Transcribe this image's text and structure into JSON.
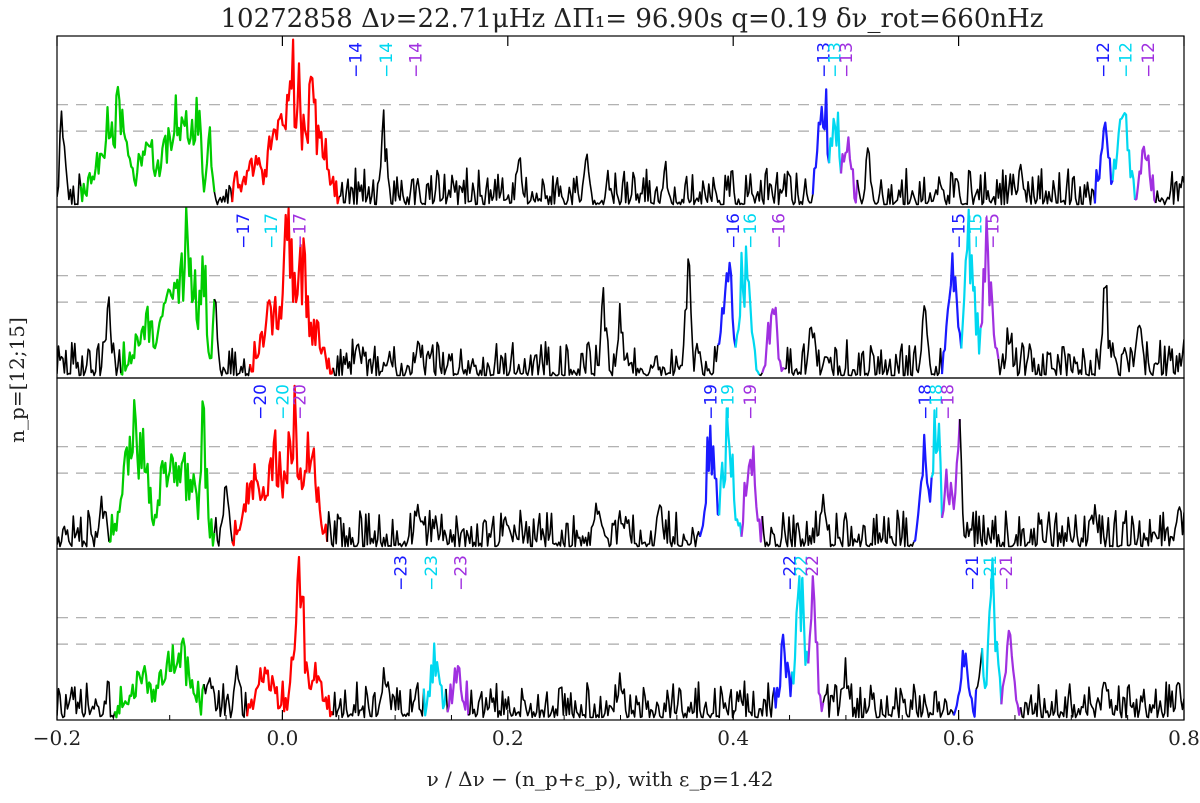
{
  "chart_data": {
    "type": "line",
    "title": "10272858 Δν=22.71μHz ΔΠ₁= 96.90s q=0.19 δν_rot=660nHz",
    "xlabel": "ν / Δν − (n_p+ε_p),  with ε_p=1.42",
    "ylabel": "n_p=[12;15]",
    "xlim": [
      -0.2,
      0.8
    ],
    "x_ticks": [
      "−0.2",
      "0.0",
      "0.2",
      "0.4",
      "0.6",
      "0.8"
    ],
    "x_tick_values": [
      -0.2,
      0.0,
      0.2,
      0.4,
      0.6,
      0.8
    ],
    "grid": false,
    "dashed_levels": [
      0.62,
      0.46
    ],
    "colors": {
      "spectrum": "#000000",
      "l0": "#ff0000",
      "l2": "#00cc00",
      "m_minus": "#1a1aff",
      "m_zero": "#00d8f0",
      "m_plus": "#a030e0"
    },
    "panels": [
      {
        "name": "panel-1",
        "noise_seed": 11,
        "peaks": [
          {
            "x": -0.195,
            "h": 0.75,
            "c": "black"
          },
          {
            "x": -0.15,
            "h": 0.78,
            "c": "l2",
            "w": 0.012
          },
          {
            "x": -0.12,
            "h": 0.45,
            "c": "l2",
            "w": 0.01
          },
          {
            "x": -0.095,
            "h": 0.7,
            "c": "l2",
            "w": 0.012
          },
          {
            "x": -0.085,
            "h": 0.6,
            "c": "l2",
            "w": 0.01
          },
          {
            "x": -0.075,
            "h": 0.85,
            "c": "black"
          },
          {
            "x": -0.065,
            "h": 0.62,
            "c": "black"
          },
          {
            "x": -0.025,
            "h": 0.35,
            "c": "l0",
            "w": 0.008
          },
          {
            "x": -0.005,
            "h": 0.65,
            "c": "l0",
            "w": 0.008
          },
          {
            "x": 0.01,
            "h": 1.05,
            "c": "l0",
            "w": 0.008
          },
          {
            "x": 0.025,
            "h": 0.8,
            "c": "l0",
            "w": 0.008
          },
          {
            "x": 0.035,
            "h": 0.5,
            "c": "l0",
            "w": 0.006
          },
          {
            "x": 0.09,
            "h": 0.6,
            "c": "black"
          },
          {
            "x": 0.21,
            "h": 0.35,
            "c": "black"
          },
          {
            "x": 0.27,
            "h": 0.4,
            "c": "black"
          },
          {
            "x": 0.34,
            "h": 0.3,
            "c": "black"
          },
          {
            "x": 0.475,
            "h": 0.55,
            "c": "black"
          },
          {
            "x": 0.48,
            "h": 1.0,
            "c": "m_minus",
            "w": 0.004
          },
          {
            "x": 0.49,
            "h": 0.9,
            "c": "m_zero",
            "w": 0.004
          },
          {
            "x": 0.5,
            "h": 0.5,
            "c": "m_plus",
            "w": 0.004
          },
          {
            "x": 0.52,
            "h": 0.4,
            "c": "black"
          },
          {
            "x": 0.655,
            "h": 0.3,
            "c": "black"
          },
          {
            "x": 0.73,
            "h": 0.6,
            "c": "m_minus",
            "w": 0.004
          },
          {
            "x": 0.745,
            "h": 0.75,
            "c": "m_zero",
            "w": 0.005
          },
          {
            "x": 0.765,
            "h": 0.45,
            "c": "m_plus",
            "w": 0.004
          }
        ],
        "labels": [
          {
            "x": 0.065,
            "text": "−14",
            "c": "m_minus"
          },
          {
            "x": 0.092,
            "text": "−14",
            "c": "m_zero"
          },
          {
            "x": 0.118,
            "text": "−14",
            "c": "m_plus"
          },
          {
            "x": 0.48,
            "text": "−13",
            "c": "m_minus"
          },
          {
            "x": 0.49,
            "text": "−13",
            "c": "m_zero"
          },
          {
            "x": 0.5,
            "text": "−13",
            "c": "m_plus"
          },
          {
            "x": 0.728,
            "text": "−12",
            "c": "m_minus"
          },
          {
            "x": 0.748,
            "text": "−12",
            "c": "m_zero"
          },
          {
            "x": 0.768,
            "text": "−12",
            "c": "m_plus"
          }
        ]
      },
      {
        "name": "panel-2",
        "noise_seed": 29,
        "peaks": [
          {
            "x": -0.155,
            "h": 0.6,
            "c": "black"
          },
          {
            "x": -0.12,
            "h": 0.45,
            "c": "l2",
            "w": 0.01
          },
          {
            "x": -0.095,
            "h": 0.75,
            "c": "l2",
            "w": 0.012
          },
          {
            "x": -0.085,
            "h": 1.05,
            "c": "l2",
            "w": 0.01
          },
          {
            "x": -0.07,
            "h": 1.0,
            "c": "black"
          },
          {
            "x": -0.06,
            "h": 0.55,
            "c": "black"
          },
          {
            "x": -0.01,
            "h": 0.55,
            "c": "l0",
            "w": 0.008
          },
          {
            "x": 0.005,
            "h": 1.05,
            "c": "l0",
            "w": 0.007
          },
          {
            "x": 0.015,
            "h": 1.0,
            "c": "l0",
            "w": 0.007
          },
          {
            "x": 0.03,
            "h": 0.4,
            "c": "l0",
            "w": 0.006
          },
          {
            "x": 0.12,
            "h": 0.3,
            "c": "black"
          },
          {
            "x": 0.285,
            "h": 0.55,
            "c": "black"
          },
          {
            "x": 0.3,
            "h": 0.5,
            "c": "black"
          },
          {
            "x": 0.36,
            "h": 0.8,
            "c": "black"
          },
          {
            "x": 0.395,
            "h": 1.0,
            "c": "m_minus",
            "w": 0.004
          },
          {
            "x": 0.41,
            "h": 0.95,
            "c": "m_zero",
            "w": 0.005
          },
          {
            "x": 0.435,
            "h": 0.55,
            "c": "m_plus",
            "w": 0.004
          },
          {
            "x": 0.47,
            "h": 0.45,
            "c": "black"
          },
          {
            "x": 0.57,
            "h": 0.55,
            "c": "black"
          },
          {
            "x": 0.595,
            "h": 0.95,
            "c": "m_minus",
            "w": 0.004
          },
          {
            "x": 0.61,
            "h": 1.05,
            "c": "m_zero",
            "w": 0.005
          },
          {
            "x": 0.625,
            "h": 1.05,
            "c": "m_plus",
            "w": 0.004
          },
          {
            "x": 0.645,
            "h": 0.4,
            "c": "black"
          },
          {
            "x": 0.73,
            "h": 0.75,
            "c": "black"
          },
          {
            "x": 0.76,
            "h": 0.45,
            "c": "black"
          }
        ],
        "labels": [
          {
            "x": -0.035,
            "text": "−17",
            "c": "m_minus"
          },
          {
            "x": -0.01,
            "text": "−17",
            "c": "m_zero"
          },
          {
            "x": 0.015,
            "text": "−17",
            "c": "m_plus"
          },
          {
            "x": 0.4,
            "text": "−16",
            "c": "m_minus"
          },
          {
            "x": 0.415,
            "text": "−16",
            "c": "m_zero"
          },
          {
            "x": 0.44,
            "text": "−16",
            "c": "m_plus"
          },
          {
            "x": 0.6,
            "text": "−15",
            "c": "m_minus"
          },
          {
            "x": 0.615,
            "text": "−15",
            "c": "m_zero"
          },
          {
            "x": 0.63,
            "text": "−15",
            "c": "m_plus"
          }
        ]
      },
      {
        "name": "panel-3",
        "noise_seed": 47,
        "peaks": [
          {
            "x": -0.16,
            "h": 0.35,
            "c": "black"
          },
          {
            "x": -0.13,
            "h": 0.95,
            "c": "l2",
            "w": 0.01
          },
          {
            "x": -0.1,
            "h": 0.7,
            "c": "l2",
            "w": 0.01
          },
          {
            "x": -0.085,
            "h": 0.6,
            "c": "l2",
            "w": 0.01
          },
          {
            "x": -0.07,
            "h": 1.05,
            "c": "black"
          },
          {
            "x": -0.05,
            "h": 0.5,
            "c": "black"
          },
          {
            "x": -0.025,
            "h": 0.65,
            "c": "l0",
            "w": 0.008
          },
          {
            "x": -0.005,
            "h": 0.75,
            "c": "l0",
            "w": 0.008
          },
          {
            "x": 0.01,
            "h": 1.0,
            "c": "l0",
            "w": 0.007
          },
          {
            "x": 0.025,
            "h": 0.8,
            "c": "l0",
            "w": 0.006
          },
          {
            "x": 0.12,
            "h": 0.35,
            "c": "black"
          },
          {
            "x": 0.2,
            "h": 0.3,
            "c": "black"
          },
          {
            "x": 0.28,
            "h": 0.4,
            "c": "black"
          },
          {
            "x": 0.335,
            "h": 0.35,
            "c": "black"
          },
          {
            "x": 0.38,
            "h": 0.95,
            "c": "m_minus",
            "w": 0.004
          },
          {
            "x": 0.395,
            "h": 1.0,
            "c": "m_zero",
            "w": 0.005
          },
          {
            "x": 0.415,
            "h": 0.9,
            "c": "m_plus",
            "w": 0.004
          },
          {
            "x": 0.48,
            "h": 0.4,
            "c": "black"
          },
          {
            "x": 0.57,
            "h": 0.9,
            "c": "m_minus",
            "w": 0.004
          },
          {
            "x": 0.58,
            "h": 0.95,
            "c": "m_zero",
            "w": 0.004
          },
          {
            "x": 0.59,
            "h": 0.6,
            "c": "m_plus",
            "w": 0.004
          },
          {
            "x": 0.6,
            "h": 1.05,
            "c": "black"
          },
          {
            "x": 0.72,
            "h": 0.3,
            "c": "black"
          },
          {
            "x": 0.795,
            "h": 0.3,
            "c": "black"
          }
        ],
        "labels": [
          {
            "x": -0.02,
            "text": "−20",
            "c": "m_minus"
          },
          {
            "x": 0.0,
            "text": "−20",
            "c": "m_zero"
          },
          {
            "x": 0.015,
            "text": "−20",
            "c": "m_plus"
          },
          {
            "x": 0.38,
            "text": "−19",
            "c": "m_minus"
          },
          {
            "x": 0.395,
            "text": "−19",
            "c": "m_zero"
          },
          {
            "x": 0.415,
            "text": "−19",
            "c": "m_plus"
          },
          {
            "x": 0.57,
            "text": "−18",
            "c": "m_minus"
          },
          {
            "x": 0.58,
            "text": "−18",
            "c": "m_zero"
          },
          {
            "x": 0.59,
            "text": "−18",
            "c": "m_plus"
          }
        ]
      },
      {
        "name": "panel-4",
        "noise_seed": 73,
        "peaks": [
          {
            "x": -0.125,
            "h": 0.35,
            "c": "l2",
            "w": 0.01
          },
          {
            "x": -0.1,
            "h": 0.5,
            "c": "l2",
            "w": 0.01
          },
          {
            "x": -0.09,
            "h": 0.55,
            "c": "l2",
            "w": 0.008
          },
          {
            "x": -0.065,
            "h": 0.5,
            "c": "black"
          },
          {
            "x": -0.04,
            "h": 0.35,
            "c": "black"
          },
          {
            "x": -0.015,
            "h": 0.4,
            "c": "l0",
            "w": 0.007
          },
          {
            "x": 0.015,
            "h": 1.0,
            "c": "l0",
            "w": 0.005
          },
          {
            "x": 0.03,
            "h": 0.4,
            "c": "l0",
            "w": 0.006
          },
          {
            "x": 0.09,
            "h": 0.35,
            "c": "black"
          },
          {
            "x": 0.135,
            "h": 0.5,
            "c": "m_zero",
            "w": 0.004
          },
          {
            "x": 0.155,
            "h": 0.4,
            "c": "m_plus",
            "w": 0.004
          },
          {
            "x": 0.3,
            "h": 0.35,
            "c": "black"
          },
          {
            "x": 0.445,
            "h": 0.6,
            "c": "m_minus",
            "w": 0.004
          },
          {
            "x": 0.46,
            "h": 1.0,
            "c": "m_zero",
            "w": 0.005
          },
          {
            "x": 0.47,
            "h": 0.95,
            "c": "m_plus",
            "w": 0.004
          },
          {
            "x": 0.5,
            "h": 0.4,
            "c": "black"
          },
          {
            "x": 0.605,
            "h": 0.45,
            "c": "m_minus",
            "w": 0.004
          },
          {
            "x": 0.62,
            "h": 0.55,
            "c": "black"
          },
          {
            "x": 0.63,
            "h": 1.05,
            "c": "m_zero",
            "w": 0.004
          },
          {
            "x": 0.645,
            "h": 0.55,
            "c": "m_plus",
            "w": 0.004
          },
          {
            "x": 0.73,
            "h": 0.35,
            "c": "black"
          },
          {
            "x": 0.795,
            "h": 0.3,
            "c": "black"
          }
        ],
        "labels": [
          {
            "x": 0.105,
            "text": "−23",
            "c": "m_minus"
          },
          {
            "x": 0.132,
            "text": "−23",
            "c": "m_zero"
          },
          {
            "x": 0.158,
            "text": "−23",
            "c": "m_plus"
          },
          {
            "x": 0.45,
            "text": "−22",
            "c": "m_minus"
          },
          {
            "x": 0.46,
            "text": "−22",
            "c": "m_zero"
          },
          {
            "x": 0.47,
            "text": "−22",
            "c": "m_plus"
          },
          {
            "x": 0.612,
            "text": "−21",
            "c": "m_minus"
          },
          {
            "x": 0.628,
            "text": "−21",
            "c": "m_zero"
          },
          {
            "x": 0.642,
            "text": "−21",
            "c": "m_plus"
          }
        ]
      }
    ]
  }
}
